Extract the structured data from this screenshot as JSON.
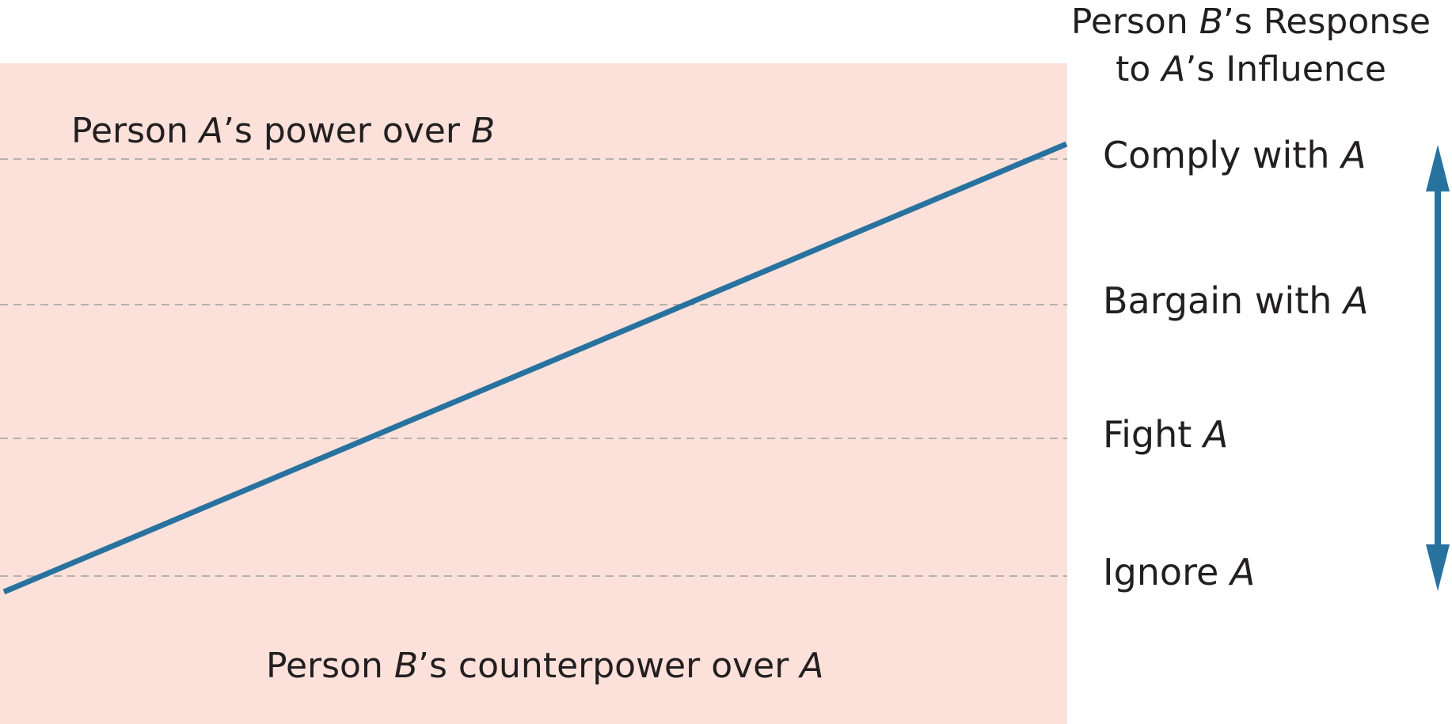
{
  "header": {
    "line1": [
      "Person ",
      "B",
      "’s Response"
    ],
    "line2": [
      "to ",
      "A",
      "’s Influence"
    ]
  },
  "panel_labels": {
    "power": [
      "Person ",
      "A",
      "’s power over ",
      "B"
    ],
    "counterpower": [
      "Person ",
      "B",
      "’s counterpower over ",
      "A"
    ]
  },
  "responses": [
    {
      "text": "Comply with ",
      "em": "A"
    },
    {
      "text": "Bargain with ",
      "em": "A"
    },
    {
      "text": "Fight ",
      "em": "A"
    },
    {
      "text": "Ignore ",
      "em": "A"
    }
  ],
  "colors": {
    "panel": "#fce1da",
    "line": "#2872a0",
    "dash": "#a0a0a0",
    "arrow": "#2872a0",
    "text": "#231f20"
  }
}
